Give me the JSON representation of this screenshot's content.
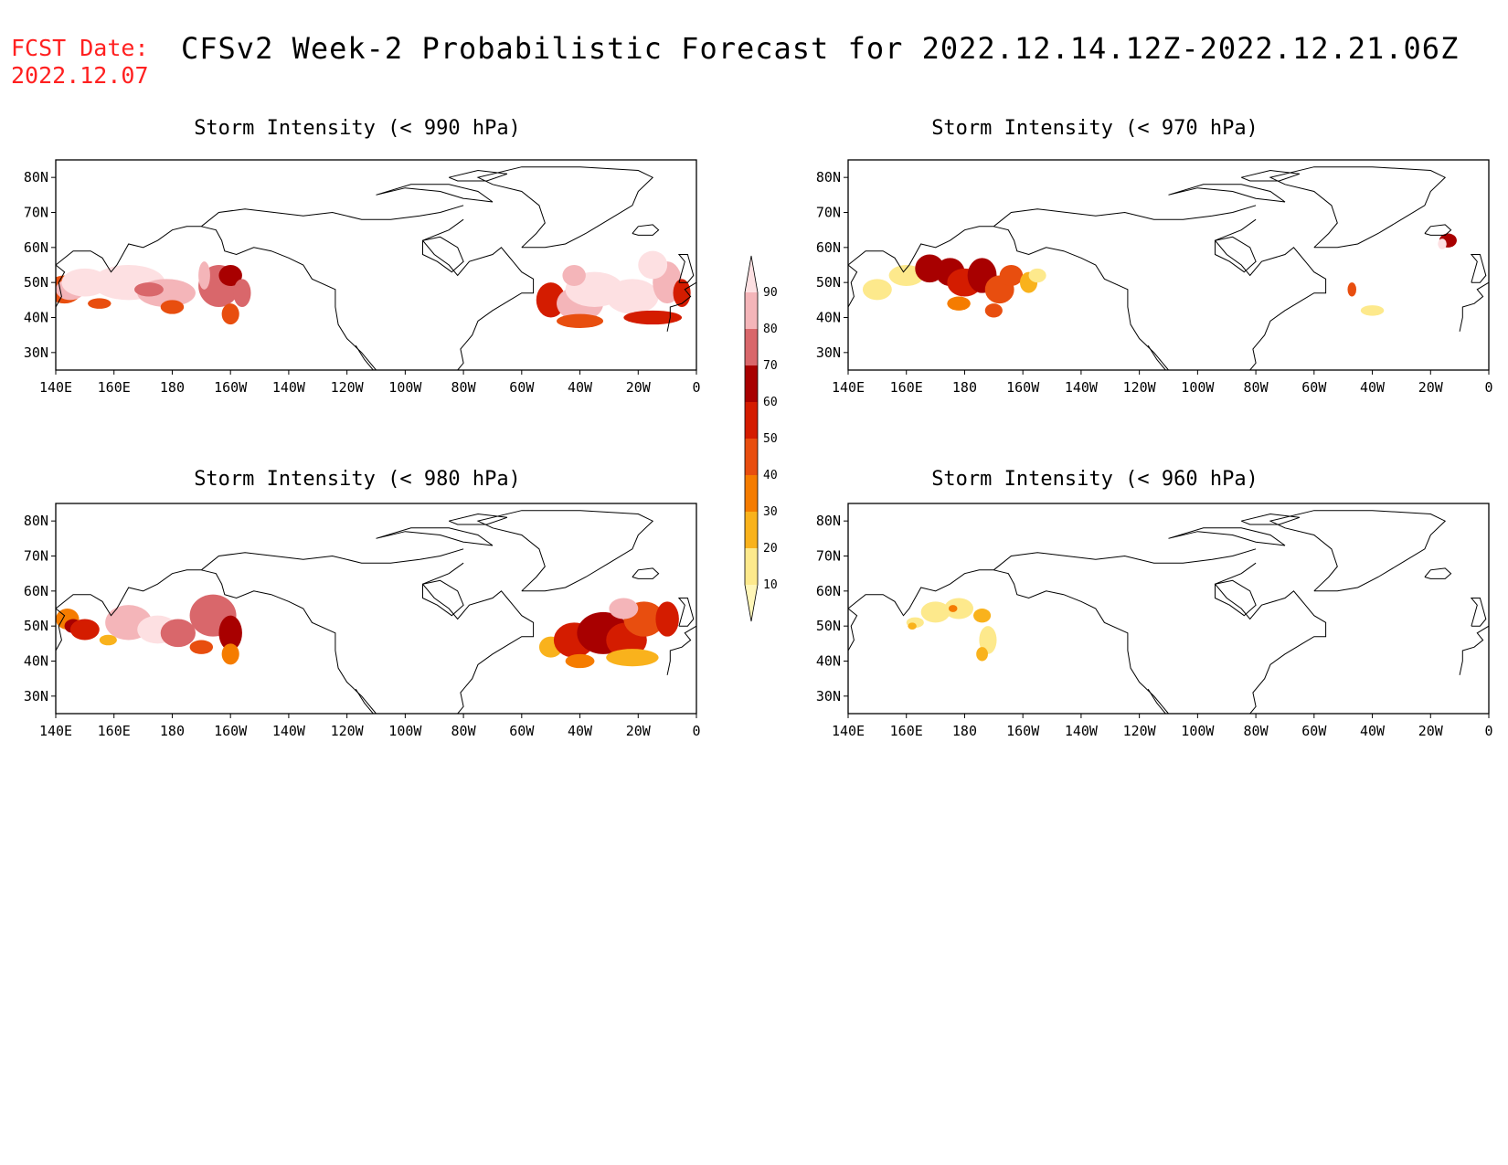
{
  "header": {
    "fcst_label": "FCST Date:",
    "fcst_date": "2022.12.07",
    "title": "CFSv2 Week-2 Probabilistic Forecast for 2022.12.14.12Z-2022.12.21.06Z"
  },
  "panels": [
    {
      "id": "p990",
      "title": "Storm Intensity (< 990 hPa)"
    },
    {
      "id": "p970",
      "title": "Storm Intensity (< 970 hPa)"
    },
    {
      "id": "p980",
      "title": "Storm Intensity (< 980 hPa)"
    },
    {
      "id": "p960",
      "title": "Storm Intensity (< 960 hPa)"
    }
  ],
  "map_axes": {
    "lon_ticks": [
      "140E",
      "160E",
      "180",
      "160W",
      "140W",
      "120W",
      "100W",
      "80W",
      "60W",
      "40W",
      "20W",
      "0"
    ],
    "lat_ticks": [
      "80N",
      "70N",
      "60N",
      "50N",
      "40N",
      "30N"
    ]
  },
  "colorbar": {
    "levels": [
      "10",
      "20",
      "30",
      "40",
      "50",
      "60",
      "70",
      "80",
      "90"
    ],
    "colors": [
      "#fff6b8",
      "#fde98c",
      "#f9b21c",
      "#f57c00",
      "#e84e0f",
      "#d41c00",
      "#a80000",
      "#d9676b",
      "#f4b5b9",
      "#fde0e2"
    ]
  }
}
